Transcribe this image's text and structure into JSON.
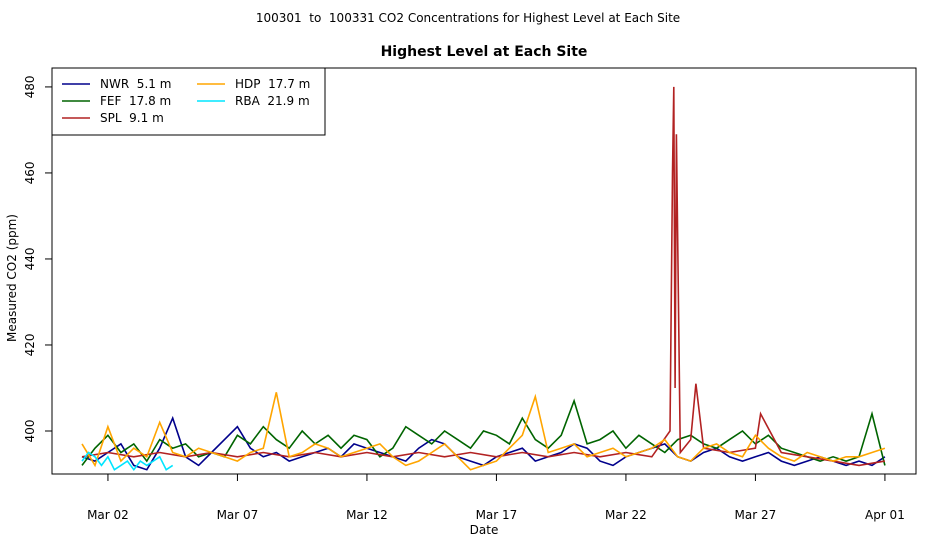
{
  "chart_data": {
    "type": "line",
    "suptitle": "100301  to  100331 CO2 Concentrations for Highest Level at Each Site",
    "title": "Highest Level at Each Site",
    "xlabel": "Date",
    "ylabel": "Measured CO2 (ppm)",
    "xlim": [
      -0.16,
      33.2
    ],
    "ylim": [
      390,
      484.4
    ],
    "xticks": [
      {
        "value": 2,
        "label": "Mar 02"
      },
      {
        "value": 7,
        "label": "Mar 07"
      },
      {
        "value": 12,
        "label": "Mar 12"
      },
      {
        "value": 17,
        "label": "Mar 17"
      },
      {
        "value": 22,
        "label": "Mar 22"
      },
      {
        "value": 27,
        "label": "Mar 27"
      },
      {
        "value": 32,
        "label": "Apr 01"
      }
    ],
    "yticks": [
      400,
      420,
      440,
      460,
      480
    ],
    "legend": "upper left",
    "series": [
      {
        "name": "NWR  5.1 m",
        "color": "#00008b",
        "x": [
          1,
          1.5,
          2,
          2.5,
          3,
          3.5,
          4,
          4.5,
          5,
          5.5,
          6,
          6.5,
          7,
          7.5,
          8,
          8.5,
          9,
          9.5,
          10,
          10.5,
          11,
          11.5,
          12,
          12.5,
          13,
          13.5,
          14,
          14.5,
          15,
          15.5,
          16,
          16.5,
          17,
          17.5,
          18,
          18.5,
          19,
          19.5,
          20,
          20.5,
          21,
          21.5,
          22,
          22.5,
          23,
          23.5,
          24,
          24.5,
          25,
          25.5,
          26,
          26.5,
          27,
          27.5,
          28,
          28.5,
          29,
          29.5,
          30,
          30.5,
          31,
          31.5,
          32
        ],
        "values": [
          394,
          393,
          395,
          397,
          392,
          391,
          396,
          403,
          394,
          392,
          395,
          398,
          401,
          396,
          394,
          395,
          393,
          394,
          395,
          396,
          394,
          397,
          396,
          395,
          394,
          393,
          396,
          398,
          397,
          394,
          393,
          392,
          394,
          395,
          396,
          393,
          394,
          395,
          397,
          396,
          393,
          392,
          394,
          395,
          396,
          397,
          394,
          393,
          395,
          396,
          394,
          393,
          394,
          395,
          393,
          392,
          393,
          394,
          393,
          392,
          393,
          392,
          394
        ]
      },
      {
        "name": "FEF  17.8 m",
        "color": "#006400",
        "x": [
          1,
          1.5,
          2,
          2.5,
          3,
          3.5,
          4,
          4.5,
          5,
          5.5,
          6,
          6.5,
          7,
          7.5,
          8,
          8.5,
          9,
          9.5,
          10,
          10.5,
          11,
          11.5,
          12,
          12.5,
          13,
          13.5,
          14,
          14.5,
          15,
          15.5,
          16,
          16.5,
          17,
          17.5,
          18,
          18.5,
          19,
          19.5,
          20,
          20.5,
          21,
          21.5,
          22,
          22.5,
          23,
          23.5,
          24,
          24.5,
          25,
          25.5,
          26,
          26.5,
          27,
          27.5,
          28,
          28.5,
          29,
          29.5,
          30,
          30.5,
          31,
          31.5,
          32
        ],
        "values": [
          392,
          396,
          399,
          395,
          397,
          393,
          398,
          396,
          397,
          394,
          395,
          394,
          399,
          397,
          401,
          398,
          396,
          400,
          397,
          399,
          396,
          399,
          398,
          394,
          396,
          401,
          399,
          397,
          400,
          398,
          396,
          400,
          399,
          397,
          403,
          398,
          396,
          399,
          407,
          397,
          398,
          400,
          396,
          399,
          397,
          395,
          398,
          399,
          397,
          396,
          398,
          400,
          397,
          399,
          396,
          395,
          394,
          393,
          394,
          393,
          394,
          404,
          392
        ]
      },
      {
        "name": "SPL  9.1 m",
        "color": "#b22222",
        "x": [
          1,
          2,
          3,
          4,
          5,
          6,
          7,
          8,
          9,
          10,
          11,
          12,
          13,
          14,
          15,
          16,
          17,
          18,
          19,
          20,
          21,
          22,
          23,
          23.7,
          23.8,
          23.85,
          23.9,
          23.95,
          24.1,
          24.5,
          24.7,
          25,
          26,
          27,
          27.2,
          28,
          29,
          30,
          31,
          32
        ],
        "values": [
          394,
          395,
          394,
          395,
          394,
          395,
          394,
          395,
          394,
          395,
          394,
          395,
          394,
          395,
          394,
          395,
          394,
          395,
          394,
          395,
          394,
          395,
          394,
          400,
          460,
          480,
          410,
          469,
          395,
          398,
          411,
          396,
          395,
          396,
          404,
          395,
          394,
          393,
          392,
          393
        ]
      },
      {
        "name": "HDP  17.7 m",
        "color": "#ffa500",
        "x": [
          1,
          1.5,
          2,
          2.5,
          3,
          3.5,
          4,
          4.5,
          5,
          5.5,
          6,
          6.5,
          7,
          7.5,
          8,
          8.5,
          9,
          9.5,
          10,
          10.5,
          11,
          11.5,
          12,
          12.5,
          13,
          13.5,
          14,
          14.5,
          15,
          15.5,
          16,
          16.5,
          17,
          17.5,
          18,
          18.5,
          19,
          19.5,
          20,
          20.5,
          21,
          21.5,
          22,
          22.5,
          23,
          23.5,
          24,
          24.5,
          25,
          25.5,
          26,
          26.5,
          27,
          27.5,
          28,
          28.5,
          29,
          29.5,
          30,
          30.5,
          31,
          31.5,
          32
        ],
        "values": [
          397,
          392,
          401,
          393,
          396,
          394,
          402,
          395,
          394,
          396,
          395,
          394,
          393,
          395,
          396,
          409,
          394,
          395,
          397,
          396,
          394,
          395,
          396,
          397,
          394,
          392,
          393,
          395,
          397,
          394,
          391,
          392,
          393,
          396,
          399,
          408,
          395,
          396,
          397,
          394,
          395,
          396,
          394,
          395,
          396,
          398,
          394,
          393,
          396,
          397,
          395,
          394,
          399,
          396,
          394,
          393,
          395,
          394,
          393,
          394,
          394,
          395,
          396
        ]
      },
      {
        "name": "RBA  21.9 m",
        "color": "#00e5ff",
        "x": [
          1,
          1.25,
          1.5,
          1.75,
          2,
          2.25,
          2.5,
          2.75,
          3,
          3.25,
          3.5,
          3.75,
          4,
          4.25,
          4.5
        ],
        "values": [
          393,
          395,
          394,
          392,
          394,
          391,
          392,
          393,
          391,
          393,
          392,
          393,
          394,
          391,
          392
        ]
      }
    ]
  }
}
